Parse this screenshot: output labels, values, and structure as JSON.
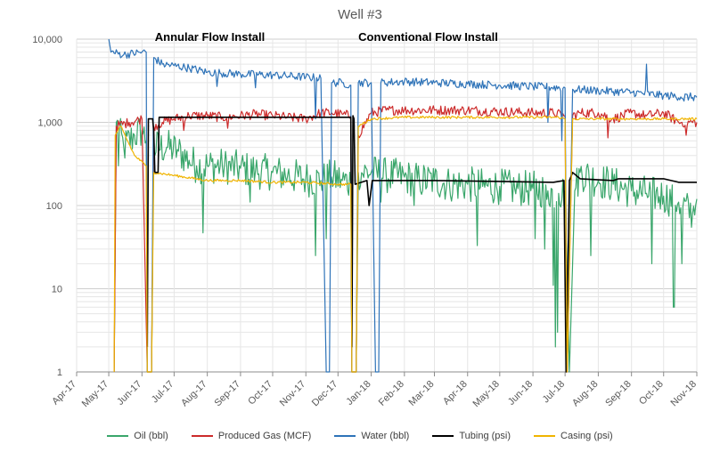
{
  "chart_data": {
    "type": "line",
    "title": "Well #3",
    "y_scale": "log",
    "ylim": [
      1,
      10000
    ],
    "y_ticks": [
      "1",
      "10",
      "100",
      "1,000",
      "10,000"
    ],
    "xlim": [
      "2017-04-01",
      "2018-11-01"
    ],
    "x_ticks": [
      "Apr-17",
      "May-17",
      "Jun-17",
      "Jul-17",
      "Aug-17",
      "Sep-17",
      "Oct-17",
      "Nov-17",
      "Dec-17",
      "Jan-18",
      "Feb-18",
      "Mar-18",
      "Apr-18",
      "May-18",
      "Jun-18",
      "Jul-18",
      "Aug-18",
      "Sep-18",
      "Oct-18",
      "Nov-18"
    ],
    "grid": true,
    "legend_position": "bottom",
    "annotations": [
      {
        "text": "Annular Flow Install",
        "date": "2017-06-08"
      },
      {
        "text": "Conventional Flow Install",
        "date": "2017-12-15"
      }
    ],
    "series": [
      {
        "name": "Oil (bbl)",
        "color": "#3aa66b",
        "points": [
          [
            "2017-05-06",
            1
          ],
          [
            "2017-05-08",
            1000
          ],
          [
            "2017-05-15",
            500
          ],
          [
            "2017-05-25",
            700
          ],
          [
            "2017-06-01",
            800
          ],
          [
            "2017-06-05",
            600
          ],
          [
            "2017-06-06",
            1
          ],
          [
            "2017-06-10",
            1
          ],
          [
            "2017-06-12",
            500
          ],
          [
            "2017-06-25",
            500
          ],
          [
            "2017-07-05",
            450
          ],
          [
            "2017-07-15",
            350
          ],
          [
            "2017-07-22",
            300
          ],
          [
            "2017-08-01",
            300
          ],
          [
            "2017-08-15",
            300
          ],
          [
            "2017-09-01",
            280
          ],
          [
            "2017-09-15",
            260
          ],
          [
            "2017-10-01",
            250
          ],
          [
            "2017-10-15",
            230
          ],
          [
            "2017-11-01",
            210
          ],
          [
            "2017-11-15",
            200
          ],
          [
            "2017-11-25",
            220
          ],
          [
            "2017-12-05",
            200
          ],
          [
            "2017-12-13",
            190
          ],
          [
            "2017-12-14",
            1
          ],
          [
            "2017-12-18",
            1
          ],
          [
            "2017-12-20",
            250
          ],
          [
            "2018-01-01",
            250
          ],
          [
            "2018-01-15",
            230
          ],
          [
            "2018-02-01",
            220
          ],
          [
            "2018-02-15",
            200
          ],
          [
            "2018-03-01",
            200
          ],
          [
            "2018-03-15",
            180
          ],
          [
            "2018-04-01",
            180
          ],
          [
            "2018-04-15",
            170
          ],
          [
            "2018-05-01",
            170
          ],
          [
            "2018-05-15",
            160
          ],
          [
            "2018-06-01",
            160
          ],
          [
            "2018-06-15",
            150
          ],
          [
            "2018-06-25",
            140
          ],
          [
            "2018-07-01",
            150
          ],
          [
            "2018-07-05",
            1
          ],
          [
            "2018-07-10",
            150
          ],
          [
            "2018-07-15",
            250
          ],
          [
            "2018-08-01",
            200
          ],
          [
            "2018-08-15",
            180
          ],
          [
            "2018-09-01",
            150
          ],
          [
            "2018-09-15",
            140
          ],
          [
            "2018-10-01",
            130
          ],
          [
            "2018-10-15",
            110
          ],
          [
            "2018-10-28",
            80
          ],
          [
            "2018-11-01",
            120
          ]
        ],
        "dips": [
          [
            "2017-05-10",
            300
          ],
          [
            "2017-06-01",
            400
          ],
          [
            "2017-07-28",
            47
          ],
          [
            "2017-08-15",
            120
          ],
          [
            "2017-09-10",
            110
          ],
          [
            "2017-10-15",
            60
          ],
          [
            "2017-11-10",
            25
          ],
          [
            "2017-11-20",
            40
          ],
          [
            "2018-01-10",
            110
          ],
          [
            "2018-02-10",
            100
          ],
          [
            "2018-04-10",
            33
          ],
          [
            "2018-06-03",
            40
          ],
          [
            "2018-06-12",
            30
          ],
          [
            "2018-06-20",
            11
          ],
          [
            "2018-06-22",
            2
          ],
          [
            "2018-06-24",
            3
          ],
          [
            "2018-07-03",
            1
          ],
          [
            "2018-07-25",
            25
          ],
          [
            "2018-09-01",
            6
          ],
          [
            "2018-09-20",
            20
          ],
          [
            "2018-10-10",
            6
          ],
          [
            "2018-10-11",
            6
          ],
          [
            "2018-10-18",
            20
          ],
          [
            "2018-10-28",
            45
          ]
        ]
      },
      {
        "name": "Produced Gas (MCF)",
        "color": "#cc2b2b",
        "points": [
          [
            "2017-05-06",
            1
          ],
          [
            "2017-05-08",
            900
          ],
          [
            "2017-05-20",
            1000
          ],
          [
            "2017-06-01",
            1100
          ],
          [
            "2017-06-06",
            1
          ],
          [
            "2017-06-10",
            1
          ],
          [
            "2017-06-12",
            900
          ],
          [
            "2017-06-20",
            1000
          ],
          [
            "2017-07-01",
            1100
          ],
          [
            "2017-07-15",
            1200
          ],
          [
            "2017-08-01",
            1200
          ],
          [
            "2017-08-15",
            1150
          ],
          [
            "2017-09-01",
            1200
          ],
          [
            "2017-09-15",
            1250
          ],
          [
            "2017-10-01",
            1200
          ],
          [
            "2017-10-15",
            1150
          ],
          [
            "2017-11-01",
            1100
          ],
          [
            "2017-11-15",
            1300
          ],
          [
            "2017-11-25",
            1300
          ],
          [
            "2017-12-05",
            1250
          ],
          [
            "2017-12-13",
            1200
          ],
          [
            "2017-12-14",
            1
          ],
          [
            "2017-12-18",
            1
          ],
          [
            "2017-12-20",
            700
          ],
          [
            "2018-01-01",
            1300
          ],
          [
            "2018-01-15",
            1400
          ],
          [
            "2018-02-01",
            1400
          ],
          [
            "2018-03-01",
            1400
          ],
          [
            "2018-04-01",
            1400
          ],
          [
            "2018-05-01",
            1350
          ],
          [
            "2018-06-01",
            1300
          ],
          [
            "2018-06-20",
            1300
          ],
          [
            "2018-07-01",
            1200
          ],
          [
            "2018-07-03",
            1
          ],
          [
            "2018-07-08",
            1200
          ],
          [
            "2018-07-15",
            1300
          ],
          [
            "2018-08-01",
            1300
          ],
          [
            "2018-08-15",
            1100
          ],
          [
            "2018-09-01",
            1300
          ],
          [
            "2018-09-15",
            1200
          ],
          [
            "2018-10-01",
            1300
          ],
          [
            "2018-10-15",
            1000
          ],
          [
            "2018-11-01",
            1000
          ]
        ],
        "dips": [
          [
            "2017-06-01",
            800
          ],
          [
            "2017-07-10",
            800
          ],
          [
            "2017-08-20",
            850
          ],
          [
            "2017-10-15",
            800
          ],
          [
            "2017-11-15",
            750
          ],
          [
            "2018-06-20",
            750
          ],
          [
            "2018-07-15",
            900
          ],
          [
            "2018-08-10",
            650
          ],
          [
            "2018-10-15",
            500
          ],
          [
            "2018-10-22",
            700
          ]
        ]
      },
      {
        "name": "Water (bbl)",
        "color": "#2e73b8",
        "points": [
          [
            "2017-05-01",
            10000
          ],
          [
            "2017-05-03",
            7000
          ],
          [
            "2017-05-15",
            6500
          ],
          [
            "2017-06-01",
            7000
          ],
          [
            "2017-06-05",
            7000
          ],
          [
            "2017-06-06",
            1
          ],
          [
            "2017-06-10",
            1
          ],
          [
            "2017-06-12",
            6000
          ],
          [
            "2017-06-20",
            5000
          ],
          [
            "2017-07-01",
            4800
          ],
          [
            "2017-07-15",
            4500
          ],
          [
            "2017-08-01",
            4000
          ],
          [
            "2017-09-01",
            3800
          ],
          [
            "2017-10-01",
            3700
          ],
          [
            "2017-11-01",
            3500
          ],
          [
            "2017-11-15",
            3400
          ],
          [
            "2017-11-20",
            1
          ],
          [
            "2017-11-23",
            1
          ],
          [
            "2017-11-25",
            3000
          ],
          [
            "2017-12-05",
            3000
          ],
          [
            "2017-12-13",
            2800
          ],
          [
            "2017-12-14",
            1
          ],
          [
            "2017-12-18",
            1
          ],
          [
            "2017-12-20",
            3000
          ],
          [
            "2018-01-01",
            3000
          ],
          [
            "2018-01-05",
            1
          ],
          [
            "2018-01-08",
            1
          ],
          [
            "2018-01-10",
            3000
          ],
          [
            "2018-02-01",
            3100
          ],
          [
            "2018-03-01",
            3000
          ],
          [
            "2018-04-01",
            2900
          ],
          [
            "2018-05-01",
            2800
          ],
          [
            "2018-06-01",
            2700
          ],
          [
            "2018-07-01",
            2600
          ],
          [
            "2018-07-03",
            1
          ],
          [
            "2018-07-08",
            2500
          ],
          [
            "2018-08-01",
            2400
          ],
          [
            "2018-09-01",
            2300
          ],
          [
            "2018-10-01",
            2100
          ],
          [
            "2018-11-01",
            2000
          ]
        ],
        "dips": [
          [
            "2017-07-15",
            3000
          ],
          [
            "2017-08-10",
            2700
          ],
          [
            "2017-09-15",
            2600
          ],
          [
            "2017-11-10",
            1100
          ],
          [
            "2017-12-05",
            1500
          ],
          [
            "2018-01-02",
            600
          ],
          [
            "2018-06-15",
            1000
          ],
          [
            "2018-06-28",
            600
          ],
          [
            "2018-08-01",
            1500
          ],
          [
            "2018-09-15",
            5000
          ],
          [
            "2018-10-20",
            1800
          ]
        ]
      },
      {
        "name": "Tubing (psi)",
        "color": "#000000",
        "points": [
          [
            "2017-06-06",
            2
          ],
          [
            "2017-06-07",
            1100
          ],
          [
            "2017-06-11",
            1100
          ],
          [
            "2017-06-12",
            800
          ],
          [
            "2017-06-13",
            250
          ],
          [
            "2017-06-16",
            250
          ],
          [
            "2017-06-17",
            1150
          ],
          [
            "2017-12-13",
            1150
          ],
          [
            "2017-12-14",
            2
          ],
          [
            "2017-12-15",
            1200
          ],
          [
            "2017-12-16",
            1100
          ],
          [
            "2017-12-17",
            180
          ],
          [
            "2017-12-28",
            200
          ],
          [
            "2017-12-30",
            100
          ],
          [
            "2018-01-02",
            200
          ],
          [
            "2018-03-01",
            200
          ],
          [
            "2018-05-01",
            195
          ],
          [
            "2018-06-20",
            190
          ],
          [
            "2018-06-30",
            200
          ],
          [
            "2018-07-02",
            1
          ],
          [
            "2018-07-05",
            200
          ],
          [
            "2018-07-08",
            250
          ],
          [
            "2018-07-15",
            210
          ],
          [
            "2018-08-15",
            200
          ],
          [
            "2018-08-20",
            210
          ],
          [
            "2018-10-01",
            210
          ],
          [
            "2018-10-15",
            190
          ],
          [
            "2018-11-01",
            190
          ]
        ]
      },
      {
        "name": "Casing (psi)",
        "color": "#f0b400",
        "points": [
          [
            "2017-05-06",
            1
          ],
          [
            "2017-05-07",
            700
          ],
          [
            "2017-05-12",
            900
          ],
          [
            "2017-05-25",
            400
          ],
          [
            "2017-06-05",
            300
          ],
          [
            "2017-06-06",
            1
          ],
          [
            "2017-06-10",
            1
          ],
          [
            "2017-06-12",
            250
          ],
          [
            "2017-07-01",
            230
          ],
          [
            "2017-08-01",
            200
          ],
          [
            "2017-09-01",
            200
          ],
          [
            "2017-10-01",
            190
          ],
          [
            "2017-11-01",
            190
          ],
          [
            "2017-12-01",
            180
          ],
          [
            "2017-12-13",
            180
          ],
          [
            "2017-12-14",
            1
          ],
          [
            "2017-12-18",
            1
          ],
          [
            "2017-12-20",
            900
          ],
          [
            "2018-01-01",
            1100
          ],
          [
            "2018-02-01",
            1150
          ],
          [
            "2018-03-01",
            1150
          ],
          [
            "2018-04-01",
            1150
          ],
          [
            "2018-05-01",
            1150
          ],
          [
            "2018-06-01",
            1150
          ],
          [
            "2018-06-25",
            1150
          ],
          [
            "2018-07-01",
            1100
          ],
          [
            "2018-07-03",
            1
          ],
          [
            "2018-07-08",
            1100
          ],
          [
            "2018-08-01",
            1100
          ],
          [
            "2018-09-01",
            1100
          ],
          [
            "2018-10-01",
            1100
          ],
          [
            "2018-11-01",
            1100
          ]
        ]
      }
    ]
  }
}
